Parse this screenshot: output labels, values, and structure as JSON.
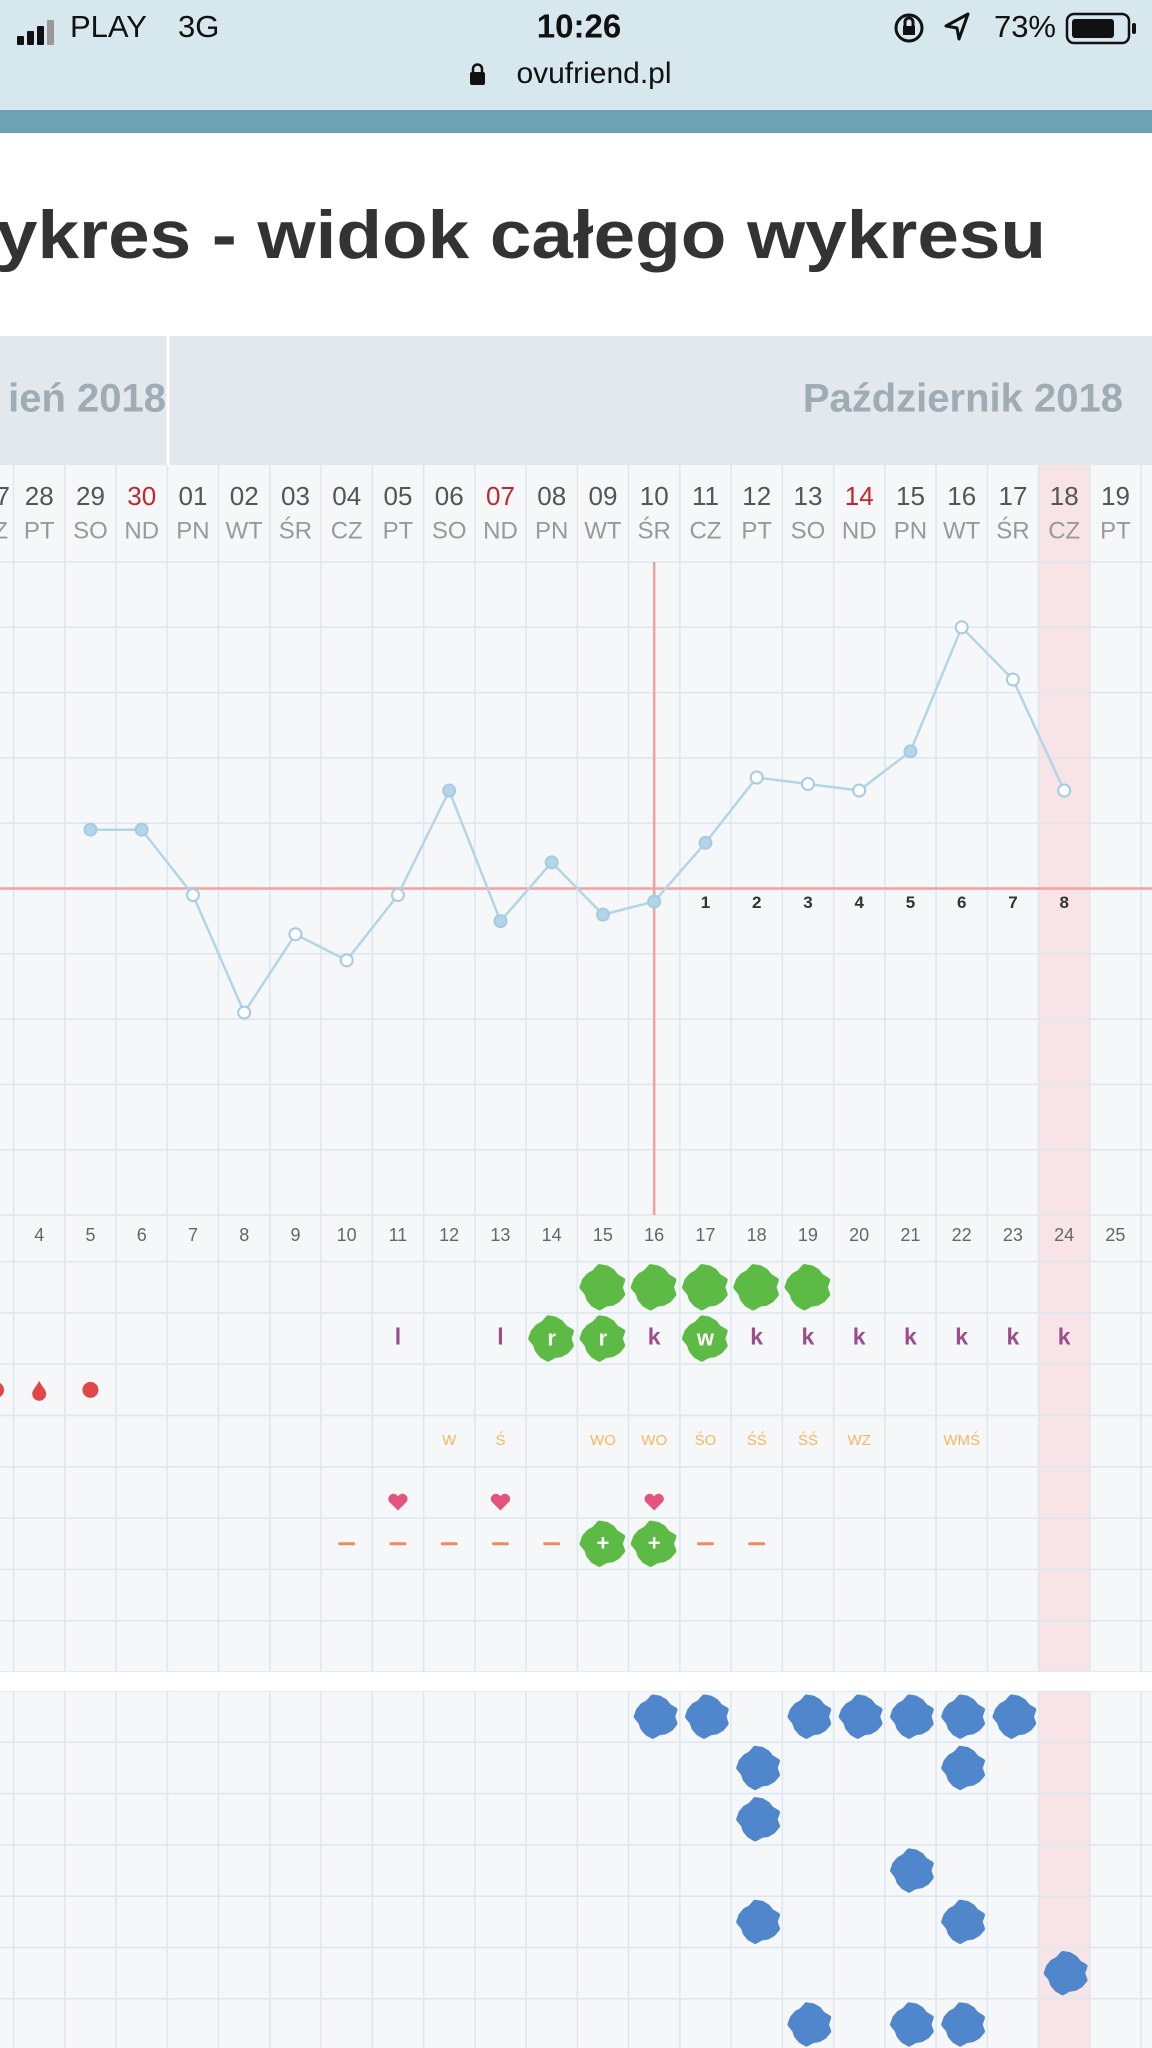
{
  "status_bar": {
    "carrier": "PLAY",
    "network": "3G",
    "time": "10:26",
    "battery": "73%",
    "url": "ovufriend.pl"
  },
  "title": "ykres - widok całego wykresu",
  "months": [
    "ień 2018",
    "Październik 2018"
  ],
  "cut_column": {
    "date": "7",
    "weekday": "Z"
  },
  "columns": [
    {
      "date": "28",
      "weekday": "PT",
      "cycle_day": 4
    },
    {
      "date": "29",
      "weekday": "SO",
      "cycle_day": 5
    },
    {
      "date": "30",
      "weekday": "ND",
      "cycle_day": 6,
      "sunday": true
    },
    {
      "date": "01",
      "weekday": "PN",
      "cycle_day": 7
    },
    {
      "date": "02",
      "weekday": "WT",
      "cycle_day": 8
    },
    {
      "date": "03",
      "weekday": "ŚR",
      "cycle_day": 9
    },
    {
      "date": "04",
      "weekday": "CZ",
      "cycle_day": 10
    },
    {
      "date": "05",
      "weekday": "PT",
      "cycle_day": 11
    },
    {
      "date": "06",
      "weekday": "SO",
      "cycle_day": 12
    },
    {
      "date": "07",
      "weekday": "ND",
      "cycle_day": 13,
      "sunday": true
    },
    {
      "date": "08",
      "weekday": "PN",
      "cycle_day": 14
    },
    {
      "date": "09",
      "weekday": "WT",
      "cycle_day": 15
    },
    {
      "date": "10",
      "weekday": "ŚR",
      "cycle_day": 16
    },
    {
      "date": "11",
      "weekday": "CZ",
      "cycle_day": 17
    },
    {
      "date": "12",
      "weekday": "PT",
      "cycle_day": 18
    },
    {
      "date": "13",
      "weekday": "SO",
      "cycle_day": 19
    },
    {
      "date": "14",
      "weekday": "ND",
      "cycle_day": 20,
      "sunday": true
    },
    {
      "date": "15",
      "weekday": "PN",
      "cycle_day": 21
    },
    {
      "date": "16",
      "weekday": "WT",
      "cycle_day": 22
    },
    {
      "date": "17",
      "weekday": "ŚR",
      "cycle_day": 23
    },
    {
      "date": "18",
      "weekday": "CZ",
      "cycle_day": 24,
      "today": true
    },
    {
      "date": "19",
      "weekday": "PT",
      "cycle_day": 25
    }
  ],
  "chart_data": {
    "type": "line",
    "values": [
      null,
      36.69,
      36.69,
      36.59,
      36.41,
      36.53,
      36.49,
      36.59,
      36.75,
      36.55,
      36.64,
      36.56,
      36.58,
      36.67,
      36.77,
      36.76,
      36.75,
      36.81,
      37.0,
      36.92,
      36.75,
      null
    ],
    "open": [
      false,
      false,
      false,
      true,
      true,
      true,
      true,
      true,
      false,
      false,
      false,
      false,
      false,
      false,
      true,
      true,
      true,
      false,
      true,
      true,
      true,
      false
    ],
    "ylim": [
      36.1,
      37.1
    ],
    "coverline": 36.6,
    "ovulation_index": 12,
    "post_ovulation_days": [
      null,
      null,
      null,
      null,
      null,
      null,
      null,
      null,
      null,
      null,
      null,
      null,
      null,
      1,
      2,
      3,
      4,
      5,
      6,
      7,
      8,
      null
    ],
    "line_color": "#b4d5e8",
    "coverline_color": "#f2a0a0"
  },
  "rows": [
    {
      "cells": [
        null,
        null,
        null,
        null,
        null,
        null,
        null,
        null,
        null,
        null,
        null,
        {
          "kind": "blob",
          "color": "#5cba45"
        },
        {
          "kind": "blob",
          "color": "#5cba45"
        },
        {
          "kind": "blob",
          "color": "#5cba45"
        },
        {
          "kind": "blob",
          "color": "#5cba45"
        },
        {
          "kind": "blob",
          "color": "#5cba45"
        },
        null,
        null,
        null,
        null,
        null,
        null
      ]
    },
    {
      "cells": [
        null,
        null,
        null,
        null,
        null,
        null,
        null,
        {
          "kind": "text",
          "text": "l",
          "color": "#9b4d8e"
        },
        null,
        {
          "kind": "text",
          "text": "l",
          "color": "#9b4d8e"
        },
        {
          "kind": "blob",
          "color": "#5cba45",
          "text": "r"
        },
        {
          "kind": "blob",
          "color": "#5cba45",
          "text": "r"
        },
        {
          "kind": "text",
          "text": "k",
          "color": "#9b4d8e"
        },
        {
          "kind": "blob",
          "color": "#5cba45",
          "text": "w"
        },
        {
          "kind": "text",
          "text": "k",
          "color": "#9b4d8e"
        },
        {
          "kind": "text",
          "text": "k",
          "color": "#9b4d8e"
        },
        {
          "kind": "text",
          "text": "k",
          "color": "#9b4d8e"
        },
        {
          "kind": "text",
          "text": "k",
          "color": "#9b4d8e"
        },
        {
          "kind": "text",
          "text": "k",
          "color": "#9b4d8e"
        },
        {
          "kind": "text",
          "text": "k",
          "color": "#9b4d8e"
        },
        {
          "kind": "text",
          "text": "k",
          "color": "#9b4d8e"
        },
        null
      ]
    },
    {
      "cells": [
        {
          "kind": "drop",
          "color": "#e04848"
        },
        {
          "kind": "dot",
          "color": "#e04848"
        },
        null,
        null,
        null,
        null,
        null,
        null,
        null,
        null,
        null,
        null,
        null,
        null,
        null,
        null,
        null,
        null,
        null,
        null,
        null,
        null
      ]
    },
    {
      "cells": [
        null,
        null,
        null,
        null,
        null,
        null,
        null,
        null,
        {
          "kind": "small",
          "text": "W",
          "color": "#f3b85c"
        },
        {
          "kind": "small",
          "text": "Ś",
          "color": "#f3b85c"
        },
        null,
        {
          "kind": "small",
          "text": "WO",
          "color": "#f3b85c"
        },
        {
          "kind": "small",
          "text": "WO",
          "color": "#f3b85c"
        },
        {
          "kind": "small",
          "text": "ŚO",
          "color": "#f3b85c"
        },
        {
          "kind": "small",
          "text": "ŚŚ",
          "color": "#f3b85c"
        },
        {
          "kind": "small",
          "text": "ŚŚ",
          "color": "#f3b85c"
        },
        {
          "kind": "small",
          "text": "WZ",
          "color": "#f3b85c"
        },
        null,
        {
          "kind": "small",
          "text": "WMŚ",
          "color": "#f3b85c"
        },
        null,
        null,
        null
      ]
    },
    {
      "cells": [
        null,
        null,
        null,
        null,
        null,
        null,
        null,
        {
          "kind": "heart",
          "color": "#e2547c"
        },
        null,
        {
          "kind": "heart",
          "color": "#e2547c"
        },
        null,
        null,
        {
          "kind": "heart",
          "color": "#e2547c"
        },
        null,
        null,
        null,
        null,
        null,
        null,
        null,
        null,
        null
      ]
    },
    {
      "cells": [
        null,
        null,
        null,
        null,
        null,
        null,
        {
          "kind": "dash",
          "color": "#ef8a5e"
        },
        {
          "kind": "dash",
          "color": "#ef8a5e"
        },
        {
          "kind": "dash",
          "color": "#ef8a5e"
        },
        {
          "kind": "dash",
          "color": "#ef8a5e"
        },
        {
          "kind": "dash",
          "color": "#ef8a5e"
        },
        {
          "kind": "blob",
          "color": "#5cba45",
          "text": "+"
        },
        {
          "kind": "blob",
          "color": "#5cba45",
          "text": "+"
        },
        {
          "kind": "dash",
          "color": "#ef8a5e"
        },
        {
          "kind": "dash",
          "color": "#ef8a5e"
        },
        null,
        null,
        null,
        null,
        null,
        null,
        null
      ]
    }
  ],
  "blue_rows": {
    "color": "#4f86cc",
    "rows": [
      [
        null,
        null,
        null,
        null,
        null,
        null,
        null,
        null,
        null,
        null,
        null,
        null,
        true,
        true,
        null,
        true,
        true,
        true,
        true,
        true,
        null,
        null
      ],
      [
        null,
        null,
        null,
        null,
        null,
        null,
        null,
        null,
        null,
        null,
        null,
        null,
        null,
        null,
        true,
        null,
        null,
        null,
        true,
        null,
        null,
        null
      ],
      [
        null,
        null,
        null,
        null,
        null,
        null,
        null,
        null,
        null,
        null,
        null,
        null,
        null,
        null,
        true,
        null,
        null,
        null,
        null,
        null,
        null,
        null
      ],
      [
        null,
        null,
        null,
        null,
        null,
        null,
        null,
        null,
        null,
        null,
        null,
        null,
        null,
        null,
        null,
        null,
        null,
        true,
        null,
        null,
        null,
        null
      ],
      [
        null,
        null,
        null,
        null,
        null,
        null,
        null,
        null,
        null,
        null,
        null,
        null,
        null,
        null,
        true,
        null,
        null,
        null,
        true,
        null,
        null,
        null
      ],
      [
        null,
        null,
        null,
        null,
        null,
        null,
        null,
        null,
        null,
        null,
        null,
        null,
        null,
        null,
        null,
        null,
        null,
        null,
        null,
        null,
        true,
        null
      ],
      [
        null,
        null,
        null,
        null,
        null,
        null,
        null,
        null,
        null,
        null,
        null,
        null,
        null,
        null,
        null,
        true,
        null,
        true,
        true,
        null,
        null,
        null
      ]
    ]
  }
}
